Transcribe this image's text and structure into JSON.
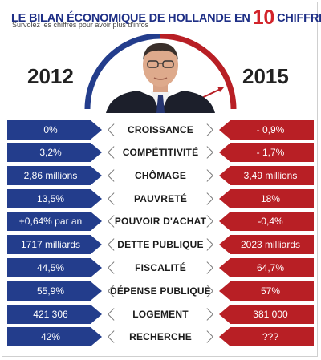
{
  "header": {
    "title_prefix": "LE BILAN ÉCONOMIQUE DE HOLLANDE EN",
    "title_number": "10",
    "title_suffix": "CHIFFRES",
    "subtitle": "Survolez les chiffres pour avoir plus d'infos"
  },
  "years": {
    "left": "2012",
    "right": "2015"
  },
  "colors": {
    "blue": "#233d8c",
    "red": "#b81f25",
    "title_red": "#d2232a",
    "title_blue": "#1e2f86"
  },
  "rows": [
    {
      "label": "CROISSANCE",
      "left": "0%",
      "right": "- 0,9%"
    },
    {
      "label": "COMPÉTITIVITÉ",
      "left": "3,2%",
      "right": "- 1,7%"
    },
    {
      "label": "CHÔMAGE",
      "left": "2,86 millions",
      "right": "3,49 millions"
    },
    {
      "label": "PAUVRETÉ",
      "left": "13,5%",
      "right": "18%"
    },
    {
      "label": "POUVOIR D'ACHAT",
      "left": "+0,64% par an",
      "right": "-0,4%"
    },
    {
      "label": "DETTE PUBLIQUE",
      "left": "1717 milliards",
      "right": "2023 milliards"
    },
    {
      "label": "FISCALITÉ",
      "left": "44,5%",
      "right": "64,7%"
    },
    {
      "label": "DÉPENSE PUBLIQUE",
      "left": "55,9%",
      "right": "57%"
    },
    {
      "label": "LOGEMENT",
      "left": "421 306",
      "right": "381 000"
    },
    {
      "label": "RECHERCHE",
      "left": "42%",
      "right": "???"
    }
  ]
}
